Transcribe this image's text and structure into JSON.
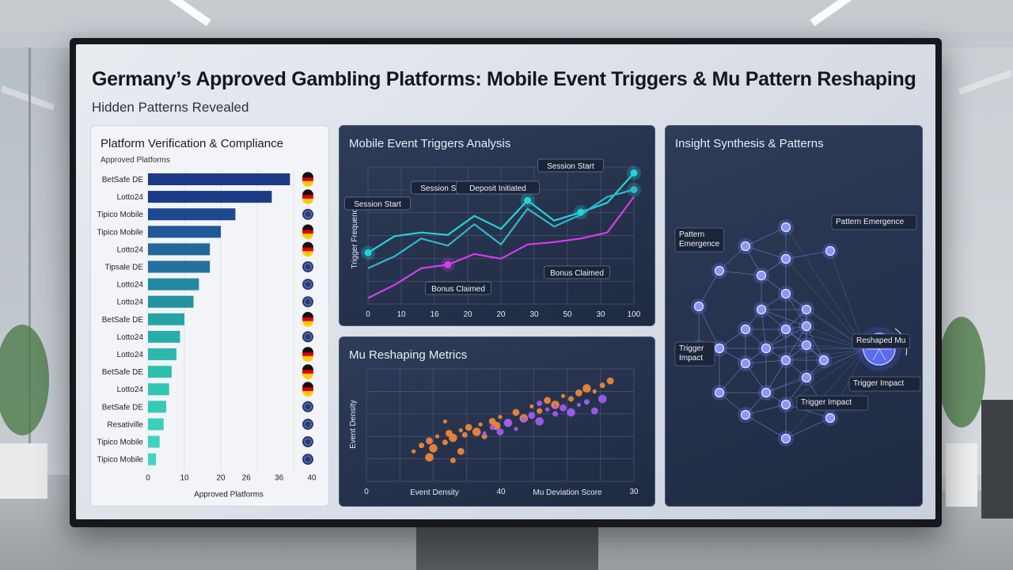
{
  "dashboard": {
    "title": "Germany’s Approved Gambling Platforms: Mobile Event Triggers & Mu Pattern Reshaping",
    "subtitle": "Hidden Patterns Revealed"
  },
  "panels": {
    "platforms": "Platform Verification & Compliance",
    "triggers": "Mobile Event Triggers Analysis",
    "mu": "Mu Reshaping Metrics",
    "insight": "Insight Synthesis & Patterns"
  },
  "colors": {
    "accent_cyan": "#22d3d8",
    "accent_magenta": "#d43df0",
    "accent_orange": "#f2883a",
    "accent_purple": "#a25cf5",
    "node_blue": "#6f7cff"
  },
  "chart_data": [
    {
      "id": "platforms",
      "type": "bar",
      "orientation": "horizontal",
      "subtitle": "Approved Platforms",
      "xlabel": "Approved Platforms",
      "xlim": [
        0,
        40
      ],
      "xticks": [
        "0",
        "10",
        "20",
        "26",
        "36",
        "40"
      ],
      "categories": [
        "BetSafe DE",
        "Lotto24",
        "Tipico Mobile",
        "Tipico Mobile",
        "Lotto24",
        "Tipsale DE",
        "Lotto24",
        "Lotto24",
        "BetSafe DE",
        "Lotto24",
        "Lotto24",
        "BetSafe DE",
        "Lotto24",
        "BetSafe DE",
        "Resativille",
        "Tipico Mobile",
        "Tipico Mobile"
      ],
      "values": [
        39,
        34,
        24,
        20,
        17,
        17,
        14,
        12.5,
        10,
        8.8,
        7.8,
        6.5,
        5.8,
        5,
        4.3,
        3.2,
        2.2
      ],
      "flags": [
        "de",
        "de",
        "eu",
        "de",
        "de",
        "eu",
        "eu",
        "eu",
        "de",
        "eu",
        "de",
        "de",
        "de",
        "eu",
        "eu",
        "eu",
        "eu"
      ],
      "bar_colors": [
        "#1c3a86",
        "#1c3a86",
        "#1e488f",
        "#215896",
        "#22679b",
        "#236f9e",
        "#2389a2",
        "#24929f",
        "#25a4a5",
        "#28adab",
        "#2cb8ab",
        "#2ec0ae",
        "#33c4b2",
        "#36cab6",
        "#3bcfbb",
        "#3ed3bf",
        "#42d6c2"
      ]
    },
    {
      "id": "triggers",
      "type": "line",
      "ylabel": "Trigger Frequency",
      "xticks": [
        "0",
        "10",
        "16",
        "20",
        "20",
        "30",
        "50",
        "30",
        "100"
      ],
      "series": [
        {
          "values": [
            43,
            57,
            60,
            58,
            74,
            63,
            87,
            70,
            77,
            85,
            110
          ],
          "color": "#22d3d8"
        },
        {
          "values": [
            30,
            40,
            55,
            49,
            67,
            50,
            80,
            65,
            75,
            90,
            96
          ],
          "color": "#2fb6c8"
        },
        {
          "values": [
            5,
            16,
            30,
            33,
            42,
            38,
            50,
            52,
            55,
            60,
            90
          ],
          "color": "#d43df0"
        }
      ],
      "annotations": [
        "Session Start",
        "Session Start",
        "Deposit Initiated",
        "Session Start",
        "Bonus Claimed",
        "Bonus Claimed"
      ]
    },
    {
      "id": "mu",
      "type": "scatter",
      "ylabel": "Event Density",
      "xlabel_left": "Event Density",
      "xlabel_right": "Mu Deviation Score",
      "xticks": [
        "0",
        "40",
        "30"
      ],
      "series": [
        {
          "color": "#f2883a",
          "points": [
            [
              6,
              2.0
            ],
            [
              7,
              2.4
            ],
            [
              8,
              2.7
            ],
            [
              8.5,
              2.2
            ],
            [
              9,
              3.0
            ],
            [
              10,
              2.6
            ],
            [
              10.5,
              3.2
            ],
            [
              11,
              2.9
            ],
            [
              12,
              3.4
            ],
            [
              12.5,
              3.1
            ],
            [
              13,
              3.6
            ],
            [
              14,
              3.3
            ],
            [
              14.5,
              3.8
            ],
            [
              15,
              3.0
            ],
            [
              16,
              4.0
            ],
            [
              16.5,
              3.7
            ],
            [
              17,
              4.3
            ],
            [
              18,
              3.9
            ],
            [
              19,
              4.6
            ],
            [
              20,
              4.2
            ],
            [
              21,
              5.0
            ],
            [
              22,
              4.7
            ],
            [
              23,
              5.4
            ],
            [
              24,
              5.1
            ],
            [
              25,
              5.7
            ],
            [
              26,
              5.5
            ],
            [
              27,
              5.9
            ],
            [
              28,
              6.2
            ],
            [
              29,
              6.0
            ],
            [
              30,
              6.4
            ],
            [
              31,
              6.7
            ],
            [
              8,
              1.6
            ],
            [
              10,
              4.0
            ],
            [
              11,
              1.4
            ],
            [
              12,
              2.0
            ]
          ]
        },
        {
          "color": "#a25cf5",
          "points": [
            [
              15,
              3.2
            ],
            [
              16,
              3.6
            ],
            [
              17,
              3.3
            ],
            [
              18,
              3.9
            ],
            [
              19,
              3.5
            ],
            [
              20,
              4.1
            ],
            [
              21,
              4.4
            ],
            [
              22,
              4.0
            ],
            [
              23,
              4.8
            ],
            [
              24,
              4.5
            ],
            [
              25,
              4.9
            ],
            [
              26,
              4.6
            ],
            [
              27,
              5.1
            ],
            [
              28,
              5.3
            ],
            [
              29,
              4.7
            ],
            [
              30,
              5.5
            ],
            [
              24,
              5.0
            ],
            [
              22,
              5.2
            ]
          ]
        }
      ]
    }
  ],
  "network": {
    "labels": [
      "Pattern Emergence",
      "Pattern Emergence",
      "Trigger Impact",
      "Trigger Impact",
      "Trigger Impact",
      "Reshaped Mu"
    ]
  }
}
